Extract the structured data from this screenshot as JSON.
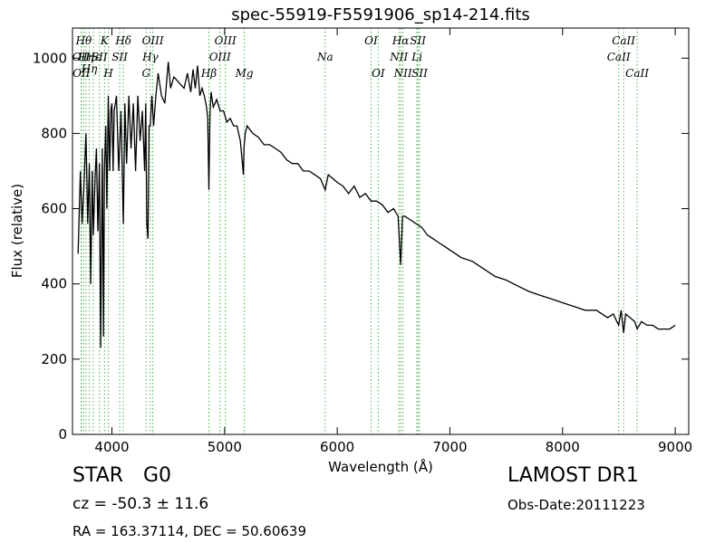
{
  "chart_data": {
    "type": "line",
    "title": "spec-55919-F5591906_sp14-214.fits",
    "xlabel": "Wavelength (Å)",
    "ylabel": "Flux (relative)",
    "xlim": [
      3650,
      9120
    ],
    "ylim": [
      0,
      1080
    ],
    "xticks": [
      4000,
      5000,
      6000,
      7000,
      8000,
      9000
    ],
    "yticks": [
      0,
      200,
      400,
      600,
      800,
      1000
    ],
    "grid": false,
    "series": [
      {
        "color": "#000000",
        "x": [
          3700,
          3720,
          3735,
          3750,
          3770,
          3785,
          3800,
          3812,
          3825,
          3835,
          3850,
          3862,
          3875,
          3889,
          3900,
          3915,
          3925,
          3933,
          3945,
          3955,
          3968,
          3980,
          3990,
          4000,
          4010,
          4020,
          4040,
          4060,
          4080,
          4101,
          4115,
          4130,
          4150,
          4170,
          4190,
          4210,
          4230,
          4250,
          4270,
          4290,
          4300,
          4310,
          4320,
          4330,
          4340,
          4355,
          4370,
          4390,
          4410,
          4440,
          4470,
          4500,
          4520,
          4550,
          4580,
          4610,
          4640,
          4670,
          4700,
          4720,
          4740,
          4760,
          4780,
          4800,
          4820,
          4840,
          4850,
          4861,
          4870,
          4880,
          4900,
          4930,
          4960,
          4990,
          5020,
          5050,
          5080,
          5110,
          5140,
          5167,
          5172,
          5183,
          5200,
          5250,
          5300,
          5350,
          5400,
          5450,
          5500,
          5550,
          5600,
          5650,
          5700,
          5750,
          5800,
          5850,
          5893,
          5920,
          5960,
          6000,
          6050,
          6100,
          6150,
          6200,
          6250,
          6300,
          6350,
          6400,
          6450,
          6500,
          6520,
          6540,
          6563,
          6580,
          6600,
          6650,
          6700,
          6750,
          6800,
          6850,
          6900,
          6950,
          7000,
          7100,
          7200,
          7300,
          7400,
          7500,
          7600,
          7700,
          7800,
          7900,
          8000,
          8100,
          8200,
          8300,
          8400,
          8450,
          8498,
          8520,
          8542,
          8560,
          8600,
          8640,
          8662,
          8700,
          8750,
          8800,
          8850,
          8900,
          8950,
          9000
        ],
        "y": [
          480,
          700,
          560,
          650,
          800,
          560,
          720,
          400,
          700,
          530,
          680,
          760,
          540,
          720,
          230,
          760,
          260,
          700,
          820,
          600,
          900,
          700,
          860,
          880,
          700,
          860,
          900,
          700,
          860,
          560,
          880,
          720,
          900,
          760,
          880,
          700,
          900,
          780,
          860,
          700,
          880,
          560,
          520,
          820,
          820,
          900,
          820,
          900,
          960,
          900,
          880,
          990,
          920,
          950,
          940,
          930,
          920,
          960,
          910,
          970,
          920,
          980,
          900,
          920,
          900,
          870,
          840,
          650,
          850,
          910,
          870,
          890,
          860,
          860,
          830,
          840,
          820,
          820,
          780,
          690,
          760,
          800,
          820,
          800,
          790,
          770,
          770,
          760,
          750,
          730,
          720,
          720,
          700,
          700,
          690,
          680,
          650,
          690,
          680,
          670,
          660,
          640,
          660,
          630,
          640,
          620,
          620,
          610,
          590,
          600,
          590,
          580,
          450,
          580,
          580,
          570,
          560,
          550,
          530,
          520,
          510,
          500,
          490,
          470,
          460,
          440,
          420,
          410,
          395,
          380,
          370,
          360,
          350,
          340,
          330,
          330,
          310,
          320,
          290,
          330,
          270,
          320,
          310,
          300,
          280,
          300,
          290,
          290,
          280,
          280,
          280,
          290
        ]
      }
    ],
    "line_markers": [
      {
        "wl": 3726,
        "text": "OII",
        "row": 1
      },
      {
        "wl": 3729,
        "text": "OII",
        "row": 2
      },
      {
        "wl": 3750,
        "text": "Hθ",
        "row": 0
      },
      {
        "wl": 3770,
        "text": "Hη",
        "row": 1
      },
      {
        "wl": 3799,
        "text": "Hη",
        "row": 1.5
      },
      {
        "wl": 3835,
        "text": "Hε",
        "row": 1
      },
      {
        "wl": 3889,
        "text": "SII",
        "row": 1
      },
      {
        "wl": 3934,
        "text": "K",
        "row": 0
      },
      {
        "wl": 3969,
        "text": "H",
        "row": 2
      },
      {
        "wl": 4069,
        "text": "SII",
        "row": 1
      },
      {
        "wl": 4102,
        "text": "Hδ",
        "row": 0
      },
      {
        "wl": 4304,
        "text": "G",
        "row": 2
      },
      {
        "wl": 4341,
        "text": "Hγ",
        "row": 1
      },
      {
        "wl": 4363,
        "text": "OIII",
        "row": 0
      },
      {
        "wl": 4861,
        "text": "Hβ",
        "row": 2
      },
      {
        "wl": 4959,
        "text": "OIII",
        "row": 1
      },
      {
        "wl": 5007,
        "text": "OIII",
        "row": 0
      },
      {
        "wl": 5175,
        "text": "Mg",
        "row": 2
      },
      {
        "wl": 5893,
        "text": "Na",
        "row": 1
      },
      {
        "wl": 6300,
        "text": "OI",
        "row": 0
      },
      {
        "wl": 6364,
        "text": "OI",
        "row": 2
      },
      {
        "wl": 6548,
        "text": "NII",
        "row": 1
      },
      {
        "wl": 6563,
        "text": "Hα",
        "row": 0
      },
      {
        "wl": 6583,
        "text": "NII",
        "row": 2
      },
      {
        "wl": 6708,
        "text": "Li",
        "row": 1
      },
      {
        "wl": 6716,
        "text": "SII",
        "row": 0
      },
      {
        "wl": 6731,
        "text": "SII",
        "row": 2
      },
      {
        "wl": 8498,
        "text": "CaII",
        "row": 1
      },
      {
        "wl": 8542,
        "text": "CaII",
        "row": 0
      },
      {
        "wl": 8662,
        "text": "CaII",
        "row": 2
      }
    ]
  },
  "info": {
    "class_label": "STAR",
    "subclass_label": "G0",
    "cz_label": "cz = -50.3 ± 11.6",
    "coords_label": "RA = 163.37114, DEC = 50.60639",
    "survey_label": "LAMOST DR1",
    "obs_date_label": "Obs-Date:20111223"
  },
  "colors": {
    "spectrum": "#000000",
    "marker_lines": "#4caf50",
    "axes": "#000000"
  }
}
